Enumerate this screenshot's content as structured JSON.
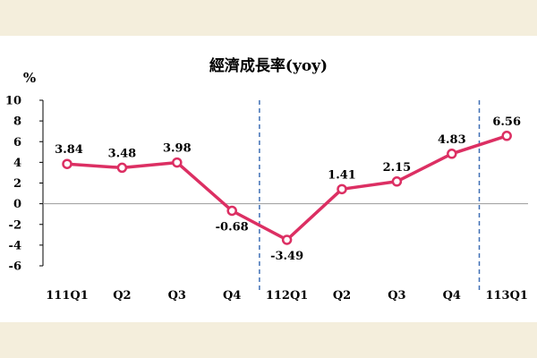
{
  "chart_data": {
    "type": "line",
    "title": "經濟成長率(yoy)",
    "unit_label": "%",
    "categories": [
      "111Q1",
      "Q2",
      "Q3",
      "Q4",
      "112Q1",
      "Q2",
      "Q3",
      "Q4",
      "113Q1"
    ],
    "series": [
      {
        "values": [
          3.84,
          3.48,
          3.98,
          -0.68,
          -3.49,
          1.41,
          2.15,
          4.83,
          6.56
        ]
      }
    ],
    "data_labels": [
      "3.84",
      "3.48",
      "3.98",
      "-0.68",
      "-3.49",
      "1.41",
      "2.15",
      "4.83",
      "6.56"
    ],
    "yticks": [
      "10",
      "8",
      "6",
      "4",
      "2",
      "0",
      "-2",
      "-4",
      "-6"
    ],
    "ylim": [
      -6,
      10
    ],
    "grid": false,
    "year_dividers": [
      "111Q4|112Q1",
      "113Q1"
    ],
    "line_color": "#dc2f63",
    "marker_fill": "#ffffff",
    "divider_color": "#3f6fb5",
    "background_color": "#f4eedc"
  }
}
